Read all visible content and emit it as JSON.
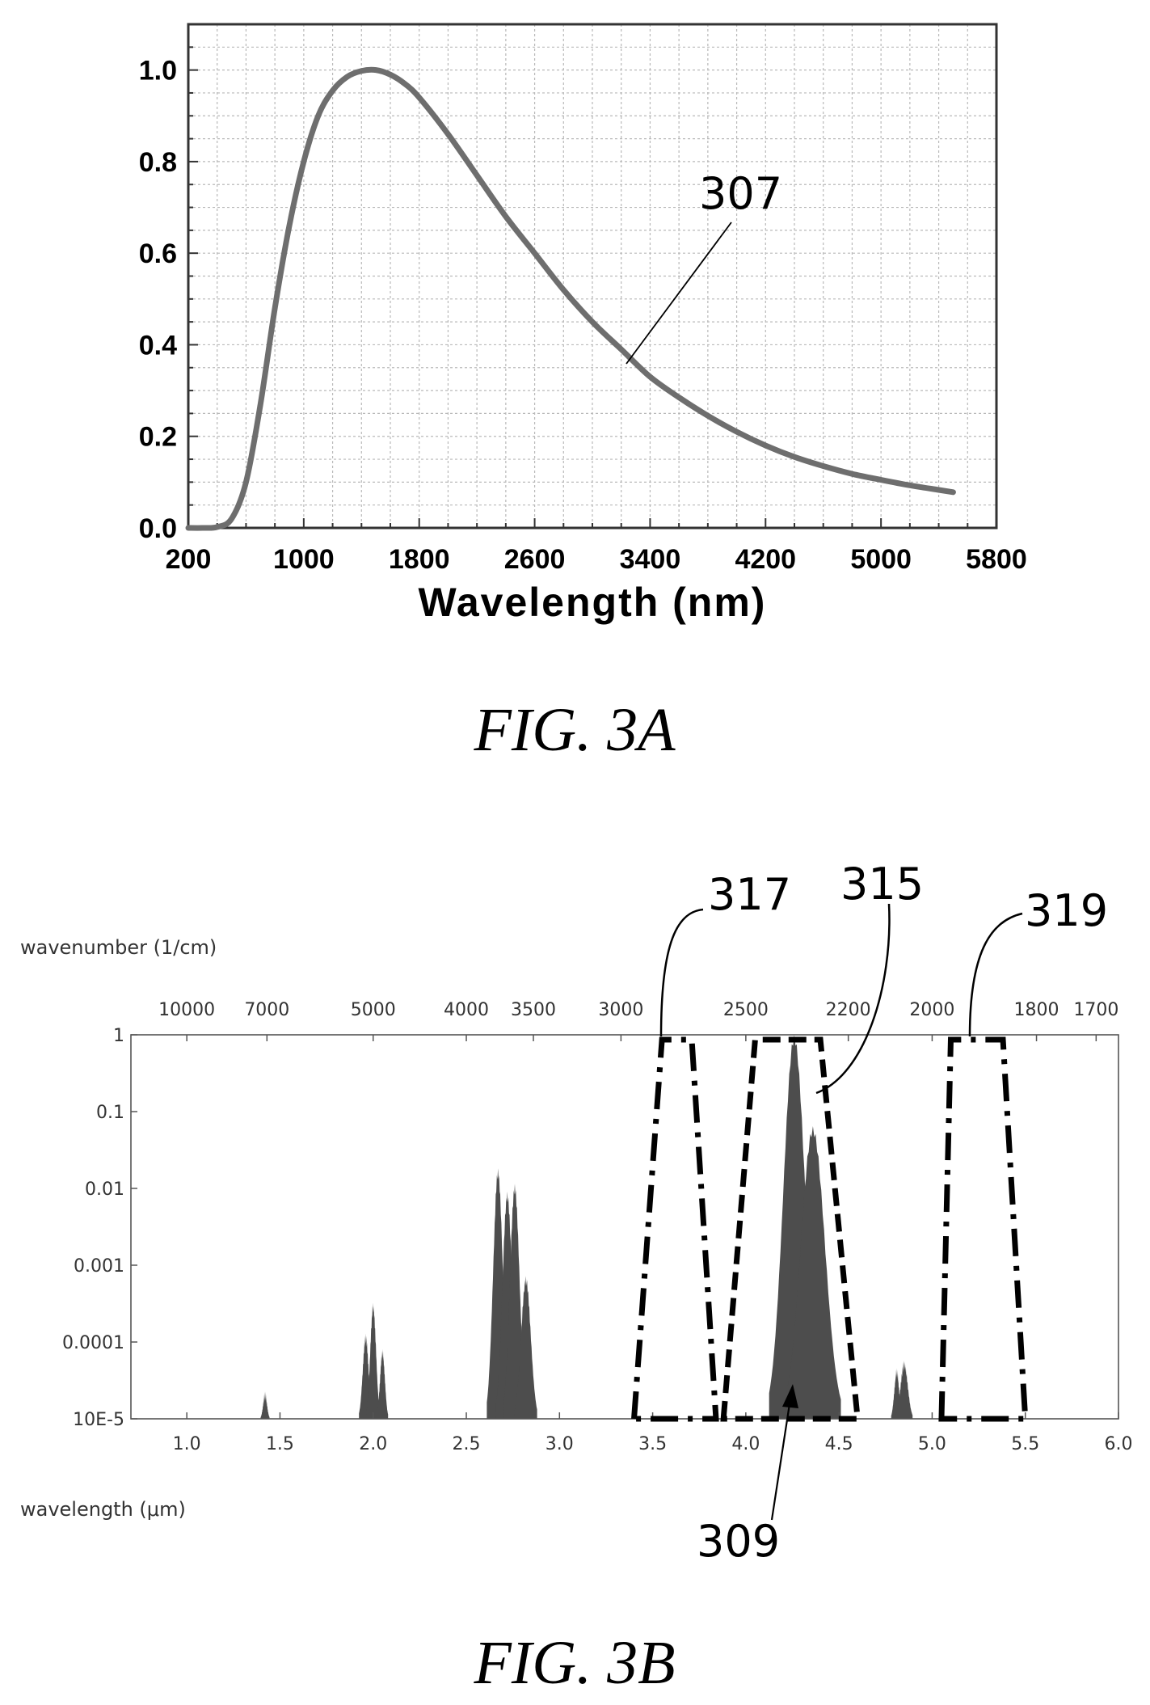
{
  "chart_data": [
    {
      "type": "line",
      "caption": "FIG. 3A",
      "xlabel": "Wavelength (nm)",
      "ylabel": "",
      "xlim": [
        200,
        5800
      ],
      "ylim": [
        0,
        1.1
      ],
      "x_ticks": [
        "200",
        "1000",
        "1800",
        "2600",
        "3400",
        "4200",
        "5000",
        "5800"
      ],
      "y_ticks": [
        "0.0",
        "0.2",
        "0.4",
        "0.6",
        "0.8",
        "1.0"
      ],
      "grid": true,
      "curve_color": "#6e6e6e",
      "annotation": "307",
      "series": [
        {
          "x": [
            200,
            300,
            400,
            500,
            600,
            700,
            800,
            900,
            1000,
            1100,
            1200,
            1300,
            1400,
            1500,
            1600,
            1700,
            1800,
            2000,
            2200,
            2400,
            2600,
            2800,
            3000,
            3200,
            3400,
            3600,
            3800,
            4000,
            4200,
            4400,
            4600,
            4800,
            5000,
            5200,
            5400,
            5500
          ],
          "y": [
            0.0,
            0.0,
            0.002,
            0.02,
            0.1,
            0.27,
            0.48,
            0.66,
            0.8,
            0.9,
            0.955,
            0.985,
            0.998,
            1.0,
            0.99,
            0.97,
            0.94,
            0.86,
            0.77,
            0.68,
            0.6,
            0.52,
            0.45,
            0.39,
            0.33,
            0.285,
            0.245,
            0.21,
            0.18,
            0.155,
            0.135,
            0.118,
            0.105,
            0.093,
            0.083,
            0.078
          ]
        }
      ]
    },
    {
      "type": "area",
      "caption": "FIG. 3B",
      "xlabel": "wavelength (μm)",
      "x2label": "wavenumber (1/cm)",
      "xlim": [
        0.7,
        6.0
      ],
      "ylim_log10": [
        -5,
        0
      ],
      "y_scale": "log",
      "x_ticks": [
        "1.0",
        "1.5",
        "2.0",
        "2.5",
        "3.0",
        "3.5",
        "4.0",
        "4.5",
        "5.0",
        "5.5",
        "6.0"
      ],
      "x2_ticks": [
        {
          "label": "10000",
          "um": 1.0
        },
        {
          "label": "7000",
          "um": 1.43
        },
        {
          "label": "5000",
          "um": 2.0
        },
        {
          "label": "4000",
          "um": 2.5
        },
        {
          "label": "3500",
          "um": 2.86
        },
        {
          "label": "3000",
          "um": 3.33
        },
        {
          "label": "2500",
          "um": 4.0
        },
        {
          "label": "2200",
          "um": 4.55
        },
        {
          "label": "2000",
          "um": 5.0
        },
        {
          "label": "1800",
          "um": 5.56
        },
        {
          "label": "1700",
          "um": 5.88
        }
      ],
      "y_ticks": [
        {
          "label": "1",
          "log": 0
        },
        {
          "label": "0.1",
          "log": -1
        },
        {
          "label": "0.01",
          "log": -2
        },
        {
          "label": "0.001",
          "log": -3
        },
        {
          "label": "0.0001",
          "log": -4
        },
        {
          "label": "10E-5",
          "log": -5
        }
      ],
      "fill_color": "#4d4d4d",
      "spectrum_peaks": [
        {
          "center": 1.42,
          "width": 0.008,
          "log_peak": -4.7
        },
        {
          "center": 1.96,
          "width": 0.012,
          "log_peak": -3.95
        },
        {
          "center": 2.0,
          "width": 0.012,
          "log_peak": -3.55
        },
        {
          "center": 2.05,
          "width": 0.01,
          "log_peak": -4.15
        },
        {
          "center": 2.67,
          "width": 0.02,
          "log_peak": -1.8
        },
        {
          "center": 2.72,
          "width": 0.02,
          "log_peak": -2.1
        },
        {
          "center": 2.76,
          "width": 0.02,
          "log_peak": -2.0
        },
        {
          "center": 2.82,
          "width": 0.02,
          "log_peak": -3.2
        },
        {
          "center": 4.26,
          "width": 0.045,
          "log_peak": -0.05
        },
        {
          "center": 4.36,
          "width": 0.05,
          "log_peak": -1.25
        },
        {
          "center": 4.81,
          "width": 0.01,
          "log_peak": -4.4
        },
        {
          "center": 4.85,
          "width": 0.015,
          "log_peak": -4.3
        }
      ],
      "filters": [
        {
          "label": "317",
          "style": "dash-dot",
          "bottom": [
            3.4,
            3.84
          ],
          "top": [
            3.55,
            3.71
          ]
        },
        {
          "label": "315",
          "style": "dashed",
          "bottom": [
            3.88,
            4.6
          ],
          "top": [
            4.05,
            4.4
          ]
        },
        {
          "label": "319",
          "style": "dash-dot",
          "bottom": [
            5.05,
            5.5
          ],
          "top": [
            5.1,
            5.38
          ]
        }
      ],
      "annotations": [
        "317",
        "315",
        "319",
        "309"
      ]
    }
  ]
}
